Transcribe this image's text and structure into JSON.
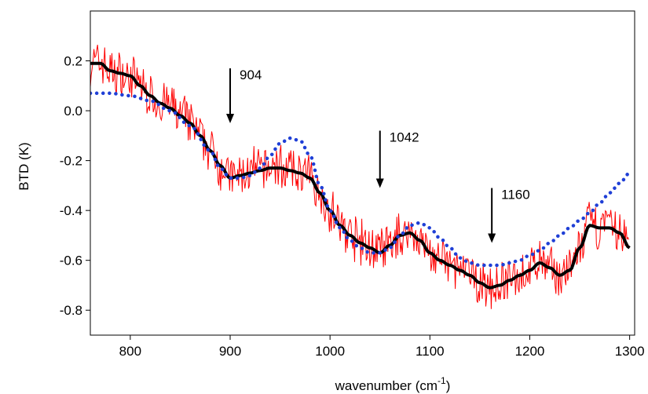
{
  "chart_data": {
    "type": "line",
    "title": "",
    "xlabel": "wavenumber (cm",
    "xlabel_sup": "-1",
    "xlabel_suffix": ")",
    "ylabel": "BTD (K)",
    "xlim": [
      760,
      1305
    ],
    "ylim": [
      -0.9,
      0.4
    ],
    "xticks": [
      800,
      900,
      1000,
      1100,
      1200,
      1300
    ],
    "yticks": [
      0.2,
      0.0,
      -0.2,
      -0.4,
      -0.6,
      -0.8
    ],
    "ytick_labels": [
      "0.2",
      "0.0",
      "-0.2",
      "-0.4",
      "-0.6",
      "-0.8"
    ],
    "grid": false,
    "annotations": [
      {
        "label": "904",
        "x": 900,
        "y_top": 0.17,
        "y_tip": -0.05
      },
      {
        "label": "1042",
        "x": 1050,
        "y_top": -0.08,
        "y_tip": -0.31
      },
      {
        "label": "1160",
        "x": 1162,
        "y_top": -0.31,
        "y_tip": -0.53
      }
    ],
    "series": [
      {
        "style": "noisy",
        "color": "#ff0000",
        "x": [
          760,
          770,
          780,
          790,
          800,
          810,
          820,
          830,
          840,
          850,
          860,
          870,
          880,
          890,
          900,
          910,
          920,
          930,
          940,
          950,
          960,
          970,
          980,
          990,
          1000,
          1010,
          1020,
          1030,
          1040,
          1050,
          1060,
          1070,
          1080,
          1090,
          1100,
          1110,
          1120,
          1130,
          1140,
          1150,
          1160,
          1170,
          1180,
          1190,
          1200,
          1210,
          1220,
          1230,
          1240,
          1250,
          1260,
          1270,
          1280,
          1290,
          1300
        ],
        "values": [
          0.19,
          0.19,
          0.16,
          0.15,
          0.14,
          0.1,
          0.06,
          0.03,
          0.01,
          -0.02,
          -0.05,
          -0.1,
          -0.16,
          -0.22,
          -0.27,
          -0.26,
          -0.25,
          -0.24,
          -0.23,
          -0.23,
          -0.24,
          -0.25,
          -0.27,
          -0.33,
          -0.4,
          -0.46,
          -0.5,
          -0.53,
          -0.55,
          -0.57,
          -0.54,
          -0.5,
          -0.49,
          -0.52,
          -0.57,
          -0.6,
          -0.62,
          -0.64,
          -0.66,
          -0.69,
          -0.71,
          -0.7,
          -0.68,
          -0.66,
          -0.64,
          -0.61,
          -0.63,
          -0.66,
          -0.64,
          -0.55,
          -0.46,
          -0.47,
          -0.47,
          -0.49,
          -0.55
        ],
        "noise_amplitude": 0.07
      },
      {
        "style": "solid",
        "color": "#000000",
        "x": [
          760,
          770,
          780,
          790,
          800,
          810,
          820,
          830,
          840,
          850,
          860,
          870,
          880,
          890,
          900,
          910,
          920,
          930,
          940,
          950,
          960,
          970,
          980,
          990,
          1000,
          1010,
          1020,
          1030,
          1040,
          1050,
          1060,
          1070,
          1080,
          1090,
          1100,
          1110,
          1120,
          1130,
          1140,
          1150,
          1160,
          1170,
          1180,
          1190,
          1200,
          1210,
          1220,
          1230,
          1240,
          1250,
          1260,
          1270,
          1280,
          1290,
          1300
        ],
        "values": [
          0.19,
          0.19,
          0.16,
          0.15,
          0.14,
          0.1,
          0.06,
          0.03,
          0.01,
          -0.02,
          -0.05,
          -0.1,
          -0.16,
          -0.22,
          -0.27,
          -0.26,
          -0.25,
          -0.24,
          -0.23,
          -0.23,
          -0.24,
          -0.25,
          -0.27,
          -0.33,
          -0.4,
          -0.46,
          -0.5,
          -0.53,
          -0.55,
          -0.57,
          -0.54,
          -0.5,
          -0.49,
          -0.52,
          -0.57,
          -0.6,
          -0.62,
          -0.64,
          -0.66,
          -0.69,
          -0.71,
          -0.7,
          -0.68,
          -0.66,
          -0.64,
          -0.61,
          -0.63,
          -0.66,
          -0.64,
          -0.55,
          -0.46,
          -0.47,
          -0.47,
          -0.49,
          -0.55
        ]
      },
      {
        "style": "dotted",
        "color": "#1f3fd6",
        "x": [
          760,
          780,
          800,
          820,
          840,
          860,
          880,
          890,
          900,
          910,
          920,
          930,
          940,
          950,
          960,
          970,
          980,
          990,
          1000,
          1010,
          1020,
          1030,
          1040,
          1050,
          1060,
          1070,
          1080,
          1090,
          1100,
          1110,
          1120,
          1130,
          1140,
          1150,
          1160,
          1170,
          1180,
          1190,
          1200,
          1210,
          1220,
          1230,
          1240,
          1250,
          1260,
          1270,
          1280,
          1290,
          1300
        ],
        "values": [
          0.07,
          0.07,
          0.06,
          0.04,
          0.0,
          -0.06,
          -0.16,
          -0.23,
          -0.27,
          -0.27,
          -0.26,
          -0.23,
          -0.18,
          -0.13,
          -0.11,
          -0.12,
          -0.18,
          -0.3,
          -0.4,
          -0.47,
          -0.52,
          -0.55,
          -0.57,
          -0.57,
          -0.55,
          -0.5,
          -0.46,
          -0.45,
          -0.47,
          -0.51,
          -0.55,
          -0.59,
          -0.61,
          -0.62,
          -0.62,
          -0.62,
          -0.61,
          -0.6,
          -0.58,
          -0.56,
          -0.53,
          -0.5,
          -0.47,
          -0.44,
          -0.41,
          -0.37,
          -0.33,
          -0.29,
          -0.25
        ]
      }
    ]
  }
}
